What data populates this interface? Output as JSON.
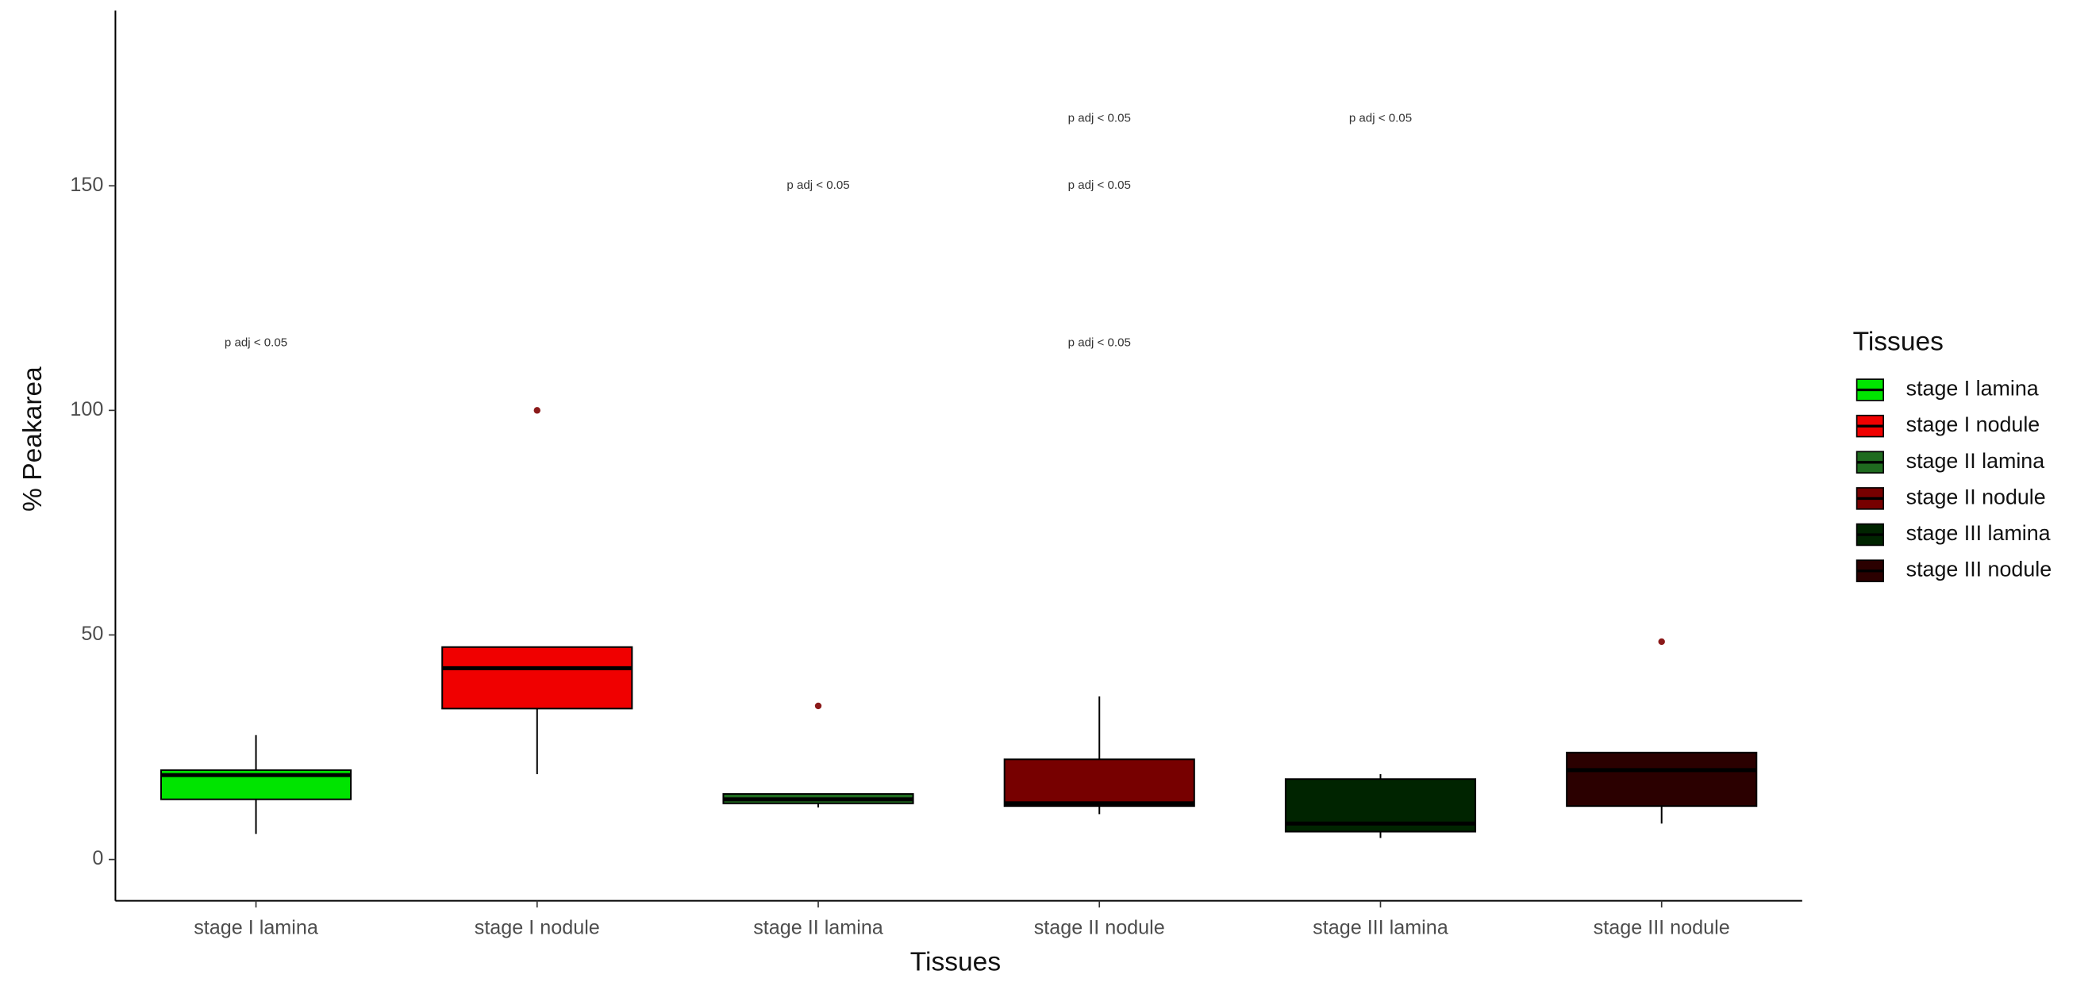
{
  "chart_data": {
    "type": "boxplot",
    "x_label": "Tissues",
    "y_label": "% Peakarea",
    "legend_title": "Tissues",
    "legend_position": "right",
    "categories": [
      "stage I lamina",
      "stage I nodule",
      "stage II lamina",
      "stage II nodule",
      "stage III lamina",
      "stage III nodule"
    ],
    "series": [
      {
        "name": "stage I lamina",
        "color": "#00e400",
        "min": 5.7,
        "q1": 13.4,
        "median": 18.8,
        "q3": 19.9,
        "max": 27.7,
        "outliers": []
      },
      {
        "name": "stage I nodule",
        "color": "#f00000",
        "min": 19,
        "q1": 33.6,
        "median": 42.6,
        "q3": 47.3,
        "max": 47.3,
        "outliers": [
          100
        ]
      },
      {
        "name": "stage II lamina",
        "color": "#1f6b1f",
        "min": 11.6,
        "q1": 12.5,
        "median": 13.4,
        "q3": 14.6,
        "max": 14.6,
        "outliers": [
          34.2
        ]
      },
      {
        "name": "stage II nodule",
        "color": "#770000",
        "min": 10.1,
        "q1": 11.9,
        "median": 12.5,
        "q3": 22.3,
        "max": 36.3,
        "outliers": []
      },
      {
        "name": "stage III lamina",
        "color": "#002400",
        "min": 4.8,
        "q1": 6.2,
        "median": 8,
        "q3": 17.9,
        "max": 19,
        "outliers": []
      },
      {
        "name": "stage III nodule",
        "color": "#2b0000",
        "min": 8,
        "q1": 11.9,
        "median": 19.9,
        "q3": 23.8,
        "max": 23.8,
        "outliers": [
          48.5
        ]
      }
    ],
    "outlier_color": "#8b1a1a",
    "annotations": [
      {
        "text": "p adj < 0.05",
        "category": 0,
        "y": 115
      },
      {
        "text": "p adj < 0.05",
        "category": 2,
        "y": 150
      },
      {
        "text": "p adj < 0.05",
        "category": 3,
        "y": 115
      },
      {
        "text": "p adj < 0.05",
        "category": 3,
        "y": 150
      },
      {
        "text": "p adj < 0.05",
        "category": 3,
        "y": 165
      },
      {
        "text": "p adj < 0.05",
        "category": 4,
        "y": 165
      }
    ],
    "ylim": [
      -9.2,
      189
    ],
    "yticks": [
      0,
      50,
      100,
      150
    ],
    "grid": false
  }
}
